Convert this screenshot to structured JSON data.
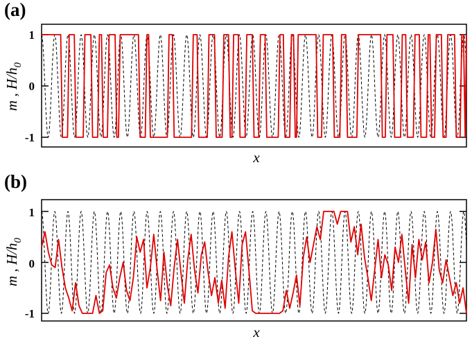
{
  "chart_data": [
    {
      "type": "line",
      "panel_label": "(a)",
      "xlabel": "x",
      "ylabel": "m , H/h0",
      "ylabel_main": "m , H/h",
      "ylabel_sub": "0",
      "yticks": [
        "1",
        "0",
        "-1"
      ],
      "ylim": [
        -1.35,
        1.0
      ],
      "grid": false,
      "legend": "none",
      "series": [
        {
          "style": "dashed",
          "color": "#000000",
          "function": "cos",
          "amplitude": 1,
          "periods": 32.2,
          "x_range": [
            0,
            1
          ]
        },
        {
          "style": "solid",
          "color": "#e00000",
          "x": [
            0.0,
            0.003,
            0.008,
            0.01,
            0.045,
            0.049,
            0.061,
            0.065,
            0.077,
            0.081,
            0.098,
            0.102,
            0.116,
            0.12,
            0.132,
            0.136,
            0.141,
            0.145,
            0.155,
            0.159,
            0.173,
            0.177,
            0.181,
            0.185,
            0.228,
            0.232,
            0.244,
            0.248,
            0.252,
            0.256,
            0.296,
            0.3,
            0.308,
            0.312,
            0.353,
            0.357,
            0.366,
            0.37,
            0.39,
            0.394,
            0.407,
            0.411,
            0.425,
            0.429,
            0.44,
            0.444,
            0.448,
            0.452,
            0.463,
            0.467,
            0.479,
            0.483,
            0.496,
            0.5,
            0.511,
            0.515,
            0.526,
            0.53,
            0.557,
            0.561,
            0.569,
            0.573,
            0.584,
            0.588,
            0.593,
            0.597,
            0.6,
            0.604,
            0.646,
            0.65,
            0.659,
            0.663,
            0.685,
            0.689,
            0.702,
            0.706,
            0.716,
            0.72,
            0.742,
            0.746,
            0.798,
            0.802,
            0.809,
            0.813,
            0.827,
            0.831,
            0.845,
            0.849,
            0.857,
            0.861,
            0.875,
            0.879,
            0.889,
            0.893,
            0.906,
            0.91,
            0.914,
            0.918,
            0.925,
            0.929,
            0.941,
            0.945,
            0.952,
            0.956,
            0.972,
            0.976,
            0.985,
            0.989,
            0.993,
            0.997,
            1.0
          ],
          "y": [
            1,
            1,
            1,
            1,
            1,
            -1,
            -1,
            1,
            1,
            -1,
            -1,
            1,
            1,
            -1,
            -1,
            1,
            1,
            -1,
            -1,
            1,
            1,
            -1,
            -1,
            1,
            1,
            -1,
            -1,
            1,
            1,
            -1,
            -1,
            1,
            1,
            -1,
            -1,
            1,
            1,
            -1,
            -1,
            1,
            1,
            -1,
            -1,
            1,
            1,
            -1,
            -1,
            1,
            1,
            -1,
            -1,
            1,
            1,
            -1,
            -1,
            1,
            1,
            -1,
            -1,
            1,
            1,
            -1,
            -1,
            1,
            1,
            -1,
            -1,
            1,
            1,
            -1,
            -1,
            1,
            1,
            -1,
            -1,
            1,
            1,
            -1,
            -1,
            1,
            1,
            -1,
            -1,
            1,
            1,
            -1,
            -1,
            1,
            1,
            -1,
            -1,
            1,
            1,
            -1,
            -1,
            1,
            1,
            -1,
            -1,
            1,
            1,
            -1,
            -1,
            1,
            1,
            -1,
            -1,
            1,
            1,
            -1,
            1
          ]
        }
      ]
    },
    {
      "type": "line",
      "panel_label": "(b)",
      "xlabel": "x",
      "ylabel": "m , H/h0",
      "ylabel_main": "m , H/h",
      "ylabel_sub": "0",
      "yticks": [
        "1",
        "0",
        "-1"
      ],
      "ylim": [
        -1.05,
        1.0
      ],
      "grid": false,
      "legend": "none",
      "series": [
        {
          "style": "dashed",
          "color": "#000000",
          "function": "cos",
          "amplitude": 1,
          "periods": 32.2,
          "x_range": [
            0,
            1
          ]
        },
        {
          "style": "solid",
          "color": "#e00000",
          "x": [
            0.0,
            0.008,
            0.016,
            0.024,
            0.032,
            0.04,
            0.048,
            0.056,
            0.064,
            0.072,
            0.08,
            0.088,
            0.096,
            0.104,
            0.112,
            0.12,
            0.128,
            0.136,
            0.144,
            0.152,
            0.16,
            0.168,
            0.176,
            0.184,
            0.192,
            0.2,
            0.208,
            0.216,
            0.224,
            0.232,
            0.24,
            0.248,
            0.256,
            0.264,
            0.272,
            0.28,
            0.288,
            0.296,
            0.304,
            0.312,
            0.32,
            0.328,
            0.336,
            0.344,
            0.352,
            0.36,
            0.368,
            0.376,
            0.384,
            0.392,
            0.4,
            0.408,
            0.416,
            0.424,
            0.432,
            0.44,
            0.448,
            0.456,
            0.464,
            0.472,
            0.48,
            0.488,
            0.496,
            0.504,
            0.512,
            0.52,
            0.528,
            0.536,
            0.544,
            0.552,
            0.56,
            0.568,
            0.576,
            0.584,
            0.592,
            0.6,
            0.608,
            0.616,
            0.624,
            0.632,
            0.64,
            0.648,
            0.656,
            0.664,
            0.672,
            0.68,
            0.688,
            0.696,
            0.704,
            0.712,
            0.72,
            0.728,
            0.736,
            0.744,
            0.752,
            0.76,
            0.768,
            0.776,
            0.784,
            0.792,
            0.8,
            0.808,
            0.816,
            0.824,
            0.832,
            0.84,
            0.848,
            0.856,
            0.864,
            0.872,
            0.88,
            0.888,
            0.896,
            0.904,
            0.912,
            0.92,
            0.928,
            0.936,
            0.944,
            0.952,
            0.96,
            0.968,
            0.976,
            0.984,
            0.992,
            1.0
          ],
          "y": [
            0.3,
            0.6,
            0.2,
            -0.05,
            -0.1,
            0.45,
            -0.1,
            -0.5,
            -0.7,
            -0.95,
            -0.4,
            -0.85,
            -1.0,
            -1.0,
            -1.0,
            -1.0,
            -0.65,
            -1.0,
            -0.95,
            -0.2,
            -0.05,
            -0.5,
            -0.7,
            -0.3,
            0.0,
            -0.55,
            -0.75,
            -0.3,
            0.5,
            0.2,
            0.45,
            -0.5,
            -0.1,
            0.55,
            -0.15,
            -0.75,
            0.2,
            -0.45,
            -0.85,
            -0.1,
            0.45,
            -0.2,
            -0.8,
            0.05,
            0.55,
            -0.15,
            -0.6,
            0.15,
            0.4,
            -0.2,
            -0.65,
            -0.3,
            -0.8,
            -0.35,
            -0.9,
            0.1,
            0.6,
            -0.15,
            -0.8,
            0.35,
            0.6,
            -0.15,
            -0.95,
            -1.0,
            -1.0,
            -1.0,
            -1.0,
            -1.0,
            -1.0,
            -1.0,
            -1.0,
            -0.95,
            -0.55,
            -0.9,
            -0.6,
            -0.25,
            -0.85,
            0.1,
            0.5,
            0.0,
            0.35,
            0.7,
            0.45,
            1.0,
            1.0,
            1.0,
            1.0,
            0.75,
            1.0,
            1.0,
            1.0,
            0.4,
            0.7,
            0.15,
            0.75,
            0.1,
            -0.3,
            -0.75,
            -0.15,
            0.45,
            -0.3,
            0.15,
            -0.05,
            -0.55,
            0.3,
            0.0,
            0.55,
            -0.15,
            -0.8,
            0.35,
            -0.3,
            0.45,
            0.05,
            0.4,
            -0.4,
            0.0,
            0.65,
            -0.15,
            -0.4,
            0.05,
            -0.3,
            -0.65,
            -0.4,
            -0.8,
            -0.5,
            -1.0
          ]
        }
      ]
    }
  ]
}
